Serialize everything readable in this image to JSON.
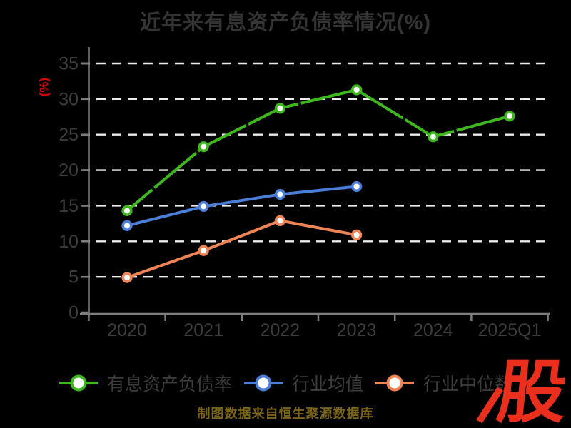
{
  "chart_data": {
    "type": "line",
    "title": "近年来有息资产负债率情况(%)",
    "ylabel": "(%)",
    "categories": [
      "2020",
      "2021",
      "2022",
      "2023",
      "2024",
      "2025Q1"
    ],
    "series": [
      {
        "name": "有息资产负债率",
        "color": "#3eb81e",
        "values": [
          14.3,
          23.3,
          28.7,
          31.3,
          24.7,
          27.6
        ],
        "sketch": true
      },
      {
        "name": "行业均值",
        "color": "#4a7ed8",
        "values": [
          12.2,
          14.9,
          16.6,
          17.7,
          null,
          null
        ],
        "sketch": false
      },
      {
        "name": "行业中位数",
        "color": "#f18455",
        "values": [
          4.9,
          8.7,
          12.9,
          10.9,
          null,
          null
        ],
        "sketch": false
      }
    ],
    "ylim": [
      0,
      35
    ],
    "yticks": [
      0,
      5,
      10,
      15,
      20,
      25,
      30,
      35
    ],
    "grid": "horizontal-dashed",
    "legend_position": "bottom"
  },
  "colors": {
    "background": "#000000",
    "title_text": "#343434",
    "tick_label_text": "#3d3d3d",
    "axis_line": "#7d7d7d",
    "gridline": "#ececec",
    "ylabel_red": "#dd0000",
    "footer_gold": "#7b6418",
    "logo_red": "#ea2f1d",
    "marker_fill": "#ffffff"
  },
  "footer": {
    "source_note": "制图数据来自恒生聚源数据库"
  },
  "logo": {
    "text": "股"
  }
}
